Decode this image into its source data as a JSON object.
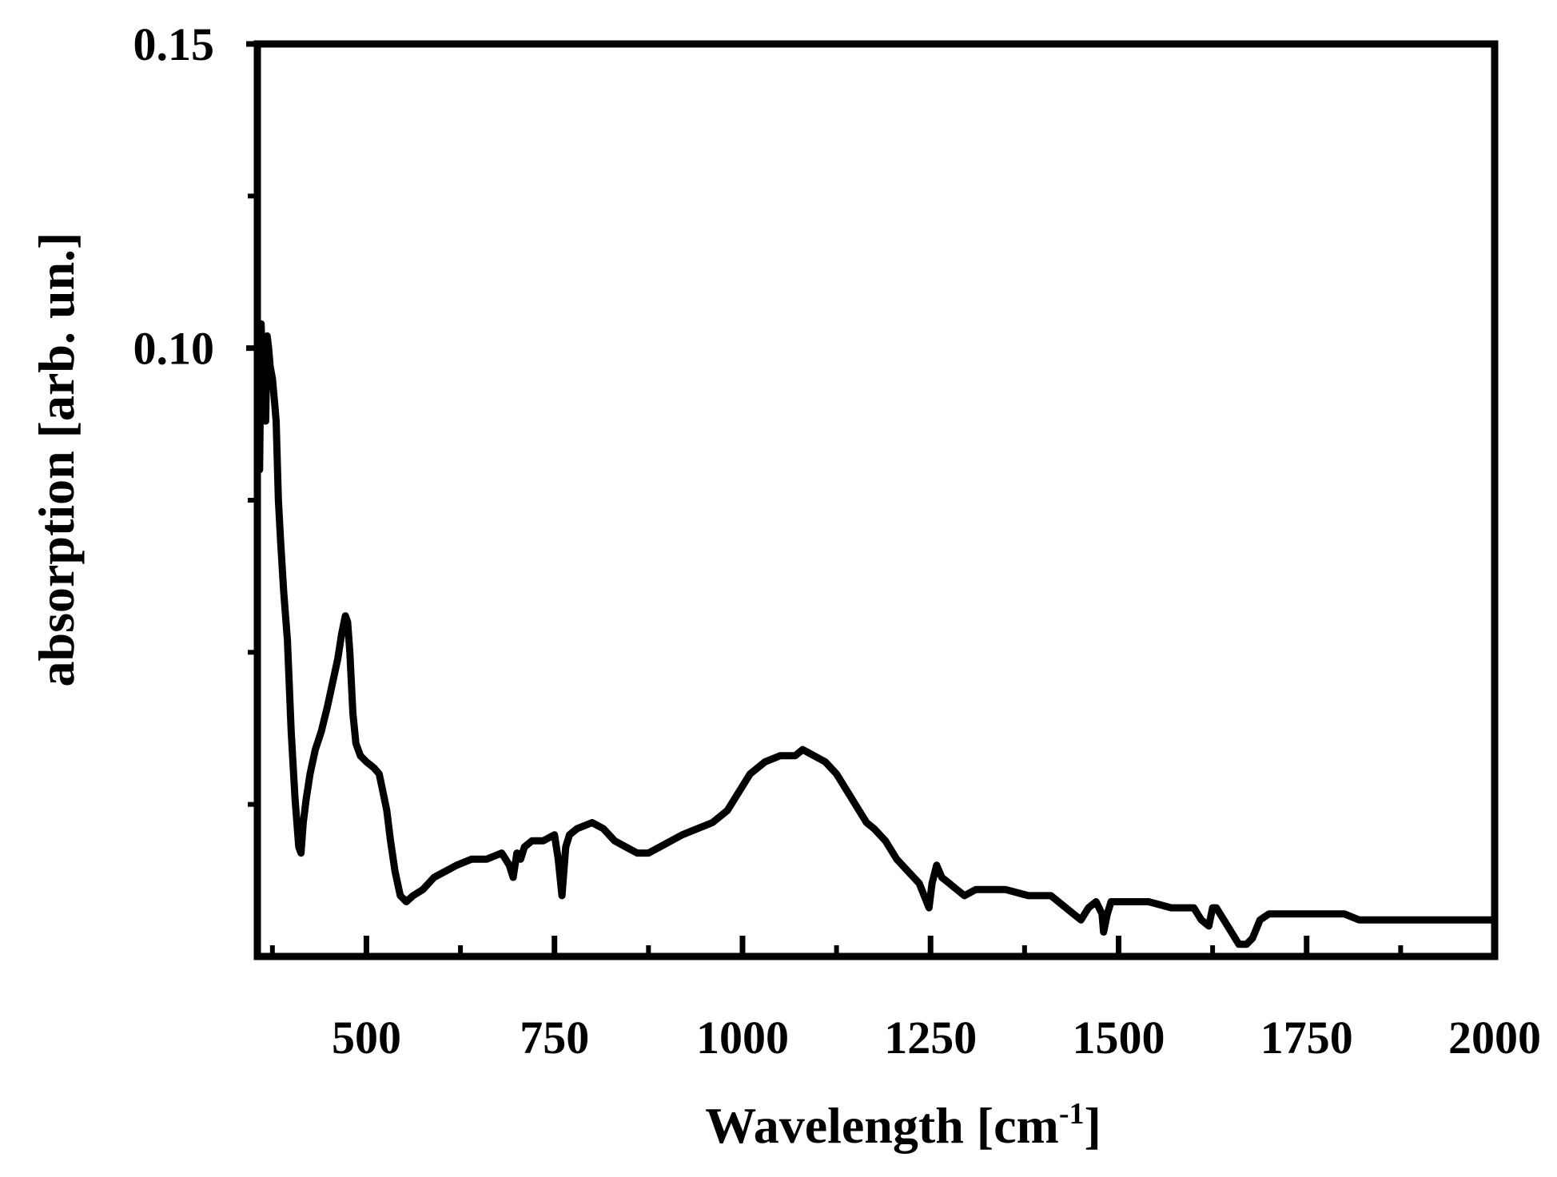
{
  "chart_data": {
    "type": "line",
    "title": "",
    "xlabel": "Wavelength [cm",
    "xlabel_sup": "-1",
    "xlabel_end": "]",
    "ylabel": "absorption [arb. un.]",
    "xlim": [
      355,
      2000
    ],
    "ylim": [
      0.0,
      0.15
    ],
    "xticks": [
      500,
      750,
      1000,
      1250,
      1500,
      1750,
      2000
    ],
    "xtick_labels": [
      "500",
      "750",
      "1000",
      "1250",
      "1500",
      "1750",
      "2000"
    ],
    "xminor": [
      375,
      625,
      875,
      1125,
      1375,
      1625,
      1875
    ],
    "yticks": [
      0.1,
      0.15
    ],
    "ytick_labels": [
      "0.10",
      "0.15"
    ],
    "yminor": [
      0.025,
      0.05,
      0.075,
      0.125
    ],
    "grid": false,
    "line_color": "#000000",
    "series": [
      {
        "x": [
          355,
          358,
          360,
          362,
          364,
          366,
          368,
          370,
          372,
          375,
          378,
          380,
          383,
          386,
          390,
          395,
          400,
          405,
          410,
          413,
          416,
          420,
          425,
          432,
          440,
          448,
          455,
          462,
          467,
          472,
          475,
          478,
          482,
          486,
          492,
          500,
          510,
          517,
          522,
          527,
          532,
          538,
          545,
          553,
          562,
          575,
          590,
          605,
          620,
          640,
          660,
          680,
          690,
          695,
          700,
          705,
          710,
          720,
          735,
          750,
          755,
          760,
          765,
          770,
          780,
          800,
          815,
          830,
          845,
          860,
          875,
          890,
          905,
          920,
          940,
          960,
          980,
          995,
          1010,
          1030,
          1050,
          1070,
          1080,
          1095,
          1110,
          1125,
          1140,
          1155,
          1165,
          1175,
          1190,
          1205,
          1220,
          1235,
          1248,
          1252,
          1258,
          1265,
          1275,
          1285,
          1295,
          1310,
          1330,
          1350,
          1380,
          1410,
          1430,
          1440,
          1450,
          1460,
          1470,
          1478,
          1480,
          1485,
          1490,
          1510,
          1540,
          1570,
          1600,
          1610,
          1620,
          1625,
          1630,
          1640,
          1650,
          1660,
          1670,
          1678,
          1688,
          1700,
          1730,
          1760,
          1800,
          1820,
          1850,
          1900,
          1950,
          2000
        ],
        "y": [
          0.089,
          0.08,
          0.104,
          0.095,
          0.1,
          0.088,
          0.102,
          0.1,
          0.097,
          0.095,
          0.091,
          0.088,
          0.075,
          0.068,
          0.06,
          0.052,
          0.037,
          0.026,
          0.018,
          0.017,
          0.022,
          0.026,
          0.03,
          0.034,
          0.037,
          0.041,
          0.045,
          0.049,
          0.053,
          0.056,
          0.055,
          0.05,
          0.04,
          0.035,
          0.033,
          0.032,
          0.031,
          0.03,
          0.027,
          0.024,
          0.019,
          0.014,
          0.01,
          0.009,
          0.01,
          0.011,
          0.013,
          0.014,
          0.015,
          0.016,
          0.016,
          0.017,
          0.015,
          0.013,
          0.017,
          0.016,
          0.018,
          0.019,
          0.019,
          0.02,
          0.016,
          0.01,
          0.018,
          0.02,
          0.021,
          0.022,
          0.021,
          0.019,
          0.018,
          0.017,
          0.017,
          0.018,
          0.019,
          0.02,
          0.021,
          0.022,
          0.024,
          0.027,
          0.03,
          0.032,
          0.033,
          0.033,
          0.034,
          0.033,
          0.032,
          0.03,
          0.027,
          0.024,
          0.022,
          0.021,
          0.019,
          0.016,
          0.014,
          0.012,
          0.008,
          0.012,
          0.015,
          0.013,
          0.012,
          0.011,
          0.01,
          0.011,
          0.011,
          0.011,
          0.01,
          0.01,
          0.008,
          0.007,
          0.006,
          0.008,
          0.009,
          0.007,
          0.004,
          0.007,
          0.009,
          0.009,
          0.009,
          0.008,
          0.008,
          0.006,
          0.005,
          0.008,
          0.008,
          0.006,
          0.004,
          0.002,
          0.002,
          0.003,
          0.006,
          0.007,
          0.007,
          0.007,
          0.007,
          0.006,
          0.006,
          0.006,
          0.006,
          0.006
        ]
      }
    ]
  }
}
